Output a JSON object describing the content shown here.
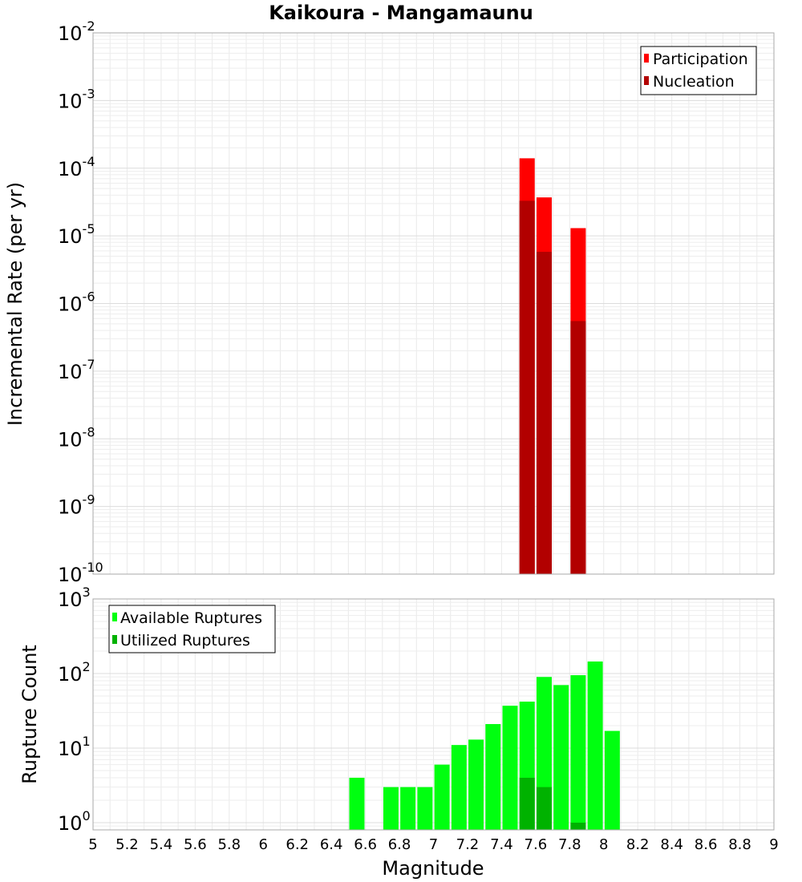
{
  "chart_data": [
    {
      "type": "bar",
      "title": "Kaikoura - Mangamaunu",
      "xlabel": "Magnitude",
      "ylabel": "Incremental Rate (per yr)",
      "yscale": "log",
      "ylim": [
        1e-10,
        0.01
      ],
      "xlim": [
        5,
        9
      ],
      "grid": true,
      "legend_position": "top-right",
      "y_tick_labels": [
        {
          "base": "10",
          "exp": "-10"
        },
        {
          "base": "10",
          "exp": "-9"
        },
        {
          "base": "10",
          "exp": "-8"
        },
        {
          "base": "10",
          "exp": "-7"
        },
        {
          "base": "10",
          "exp": "-6"
        },
        {
          "base": "10",
          "exp": "-5"
        },
        {
          "base": "10",
          "exp": "-4"
        },
        {
          "base": "10",
          "exp": "-3"
        },
        {
          "base": "10",
          "exp": "-2"
        }
      ],
      "series": [
        {
          "name": "Participation",
          "color": "#ff0000",
          "points": [
            {
              "x": 7.55,
              "y": 0.00014
            },
            {
              "x": 7.65,
              "y": 3.7e-05
            },
            {
              "x": 7.85,
              "y": 1.3e-05
            }
          ]
        },
        {
          "name": "Nucleation",
          "color": "#b20000",
          "points": [
            {
              "x": 7.55,
              "y": 3.3e-05
            },
            {
              "x": 7.65,
              "y": 5.8e-06
            },
            {
              "x": 7.85,
              "y": 5.5e-07
            }
          ]
        }
      ]
    },
    {
      "type": "bar",
      "xlabel": "Magnitude",
      "ylabel": "Rupture Count",
      "yscale": "log",
      "ylim": [
        0.8,
        1000
      ],
      "xlim": [
        5,
        9
      ],
      "grid": true,
      "legend_position": "top-left",
      "x_ticks": [
        "5",
        "5.2",
        "5.4",
        "5.6",
        "5.8",
        "6",
        "6.2",
        "6.4",
        "6.6",
        "6.8",
        "7",
        "7.2",
        "7.4",
        "7.6",
        "7.8",
        "8",
        "8.2",
        "8.4",
        "8.6",
        "8.8",
        "9"
      ],
      "y_tick_labels": [
        {
          "base": "10",
          "exp": "0"
        },
        {
          "base": "10",
          "exp": "1"
        },
        {
          "base": "10",
          "exp": "2"
        },
        {
          "base": "10",
          "exp": "3"
        }
      ],
      "series": [
        {
          "name": "Available Ruptures",
          "color": "#00ff10",
          "points": [
            {
              "x": 6.55,
              "y": 4
            },
            {
              "x": 6.75,
              "y": 3
            },
            {
              "x": 6.85,
              "y": 3
            },
            {
              "x": 6.95,
              "y": 3
            },
            {
              "x": 7.05,
              "y": 6
            },
            {
              "x": 7.15,
              "y": 11
            },
            {
              "x": 7.25,
              "y": 13
            },
            {
              "x": 7.35,
              "y": 21
            },
            {
              "x": 7.45,
              "y": 37
            },
            {
              "x": 7.55,
              "y": 42
            },
            {
              "x": 7.65,
              "y": 90
            },
            {
              "x": 7.75,
              "y": 70
            },
            {
              "x": 7.85,
              "y": 95
            },
            {
              "x": 7.95,
              "y": 145
            },
            {
              "x": 8.05,
              "y": 17
            }
          ]
        },
        {
          "name": "Utilized Ruptures",
          "color": "#00b200",
          "points": [
            {
              "x": 7.55,
              "y": 4
            },
            {
              "x": 7.65,
              "y": 3
            },
            {
              "x": 7.85,
              "y": 1
            }
          ]
        }
      ]
    }
  ]
}
